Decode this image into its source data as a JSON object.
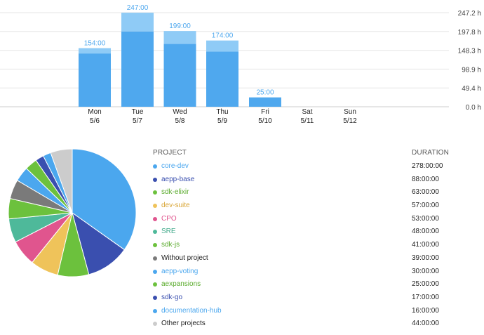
{
  "colors": {
    "bar_main": "#4fa8ee",
    "bar_top": "#8fcbf6",
    "bar_label": "#4fa8ee",
    "grid": "#e6e6e6",
    "axis_text": "#444444"
  },
  "chart_data": [
    {
      "type": "bar",
      "stacked": true,
      "categories": [
        "Mon",
        "Tue",
        "Wed",
        "Thu",
        "Fri",
        "Sat",
        "Sun"
      ],
      "category_dates": [
        "5/6",
        "5/7",
        "5/8",
        "5/9",
        "5/10",
        "5/11",
        "5/12"
      ],
      "series": [
        {
          "values": [
            140,
            197.8,
            165,
            145,
            24,
            0,
            0
          ]
        },
        {
          "values": [
            14,
            49.2,
            34,
            29,
            1,
            0,
            0
          ]
        }
      ],
      "totals": [
        154,
        247,
        199,
        174,
        25,
        0,
        0
      ],
      "total_labels": [
        "154:00",
        "247:00",
        "199:00",
        "174:00",
        "25:00",
        "",
        ""
      ],
      "y_ticks": [
        0,
        49.4,
        98.9,
        148.3,
        197.8,
        247.2
      ],
      "y_tick_labels": [
        "0.0 h",
        "49.4 h",
        "98.9 h",
        "148.3 h",
        "197.8 h",
        "247.2 h"
      ],
      "ylim": [
        0,
        247.2
      ],
      "grid": true,
      "y_axis_side": "right"
    },
    {
      "type": "pie",
      "slices": [
        {
          "label": "core-dev",
          "value": 278,
          "duration": "278:00:00",
          "color": "#4ba7ee"
        },
        {
          "label": "aepp-base",
          "value": 88,
          "duration": "88:00:00",
          "color": "#3a4faf"
        },
        {
          "label": "sdk-elixir",
          "value": 63,
          "duration": "63:00:00",
          "color": "#6cc13d"
        },
        {
          "label": "dev-suite",
          "value": 57,
          "duration": "57:00:00",
          "color": "#efc35a"
        },
        {
          "label": "CPO",
          "value": 53,
          "duration": "53:00:00",
          "color": "#e0558e"
        },
        {
          "label": "SRE",
          "value": 48,
          "duration": "48:00:00",
          "color": "#4eb99a"
        },
        {
          "label": "sdk-js",
          "value": 41,
          "duration": "41:00:00",
          "color": "#6cc13d"
        },
        {
          "label": "Without project",
          "value": 39,
          "duration": "39:00:00",
          "color": "#7a7a7a"
        },
        {
          "label": "aepp-voting",
          "value": 30,
          "duration": "30:00:00",
          "color": "#4ba7ee"
        },
        {
          "label": "aexpansions",
          "value": 25,
          "duration": "25:00:00",
          "color": "#6cc13d"
        },
        {
          "label": "sdk-go",
          "value": 17,
          "duration": "17:00:00",
          "color": "#3a4faf"
        },
        {
          "label": "documentation-hub",
          "value": 16,
          "duration": "16:00:00",
          "color": "#4ba7ee"
        },
        {
          "label": "Other projects",
          "value": 44,
          "duration": "44:00:00",
          "color": "#cccccc"
        }
      ]
    }
  ],
  "table": {
    "project_header": "PROJECT",
    "duration_header": "DURATION",
    "rows": [
      {
        "name": "core-dev",
        "duration": "278:00:00",
        "text_color": "#4ba7ee"
      },
      {
        "name": "aepp-base",
        "duration": "88:00:00",
        "text_color": "#3a4faf"
      },
      {
        "name": "sdk-elixir",
        "duration": "63:00:00",
        "text_color": "#5aab2c"
      },
      {
        "name": "dev-suite",
        "duration": "57:00:00",
        "text_color": "#d9a636"
      },
      {
        "name": "CPO",
        "duration": "53:00:00",
        "text_color": "#e0558e"
      },
      {
        "name": "SRE",
        "duration": "48:00:00",
        "text_color": "#3fa888"
      },
      {
        "name": "sdk-js",
        "duration": "41:00:00",
        "text_color": "#5aab2c"
      },
      {
        "name": "Without project",
        "duration": "39:00:00",
        "text_color": "#222222"
      },
      {
        "name": "aepp-voting",
        "duration": "30:00:00",
        "text_color": "#4ba7ee"
      },
      {
        "name": "aexpansions",
        "duration": "25:00:00",
        "text_color": "#5aab2c"
      },
      {
        "name": "sdk-go",
        "duration": "17:00:00",
        "text_color": "#3a4faf"
      },
      {
        "name": "documentation-hub",
        "duration": "16:00:00",
        "text_color": "#4ba7ee"
      },
      {
        "name": "Other projects",
        "duration": "44:00:00",
        "text_color": "#222222"
      }
    ]
  }
}
